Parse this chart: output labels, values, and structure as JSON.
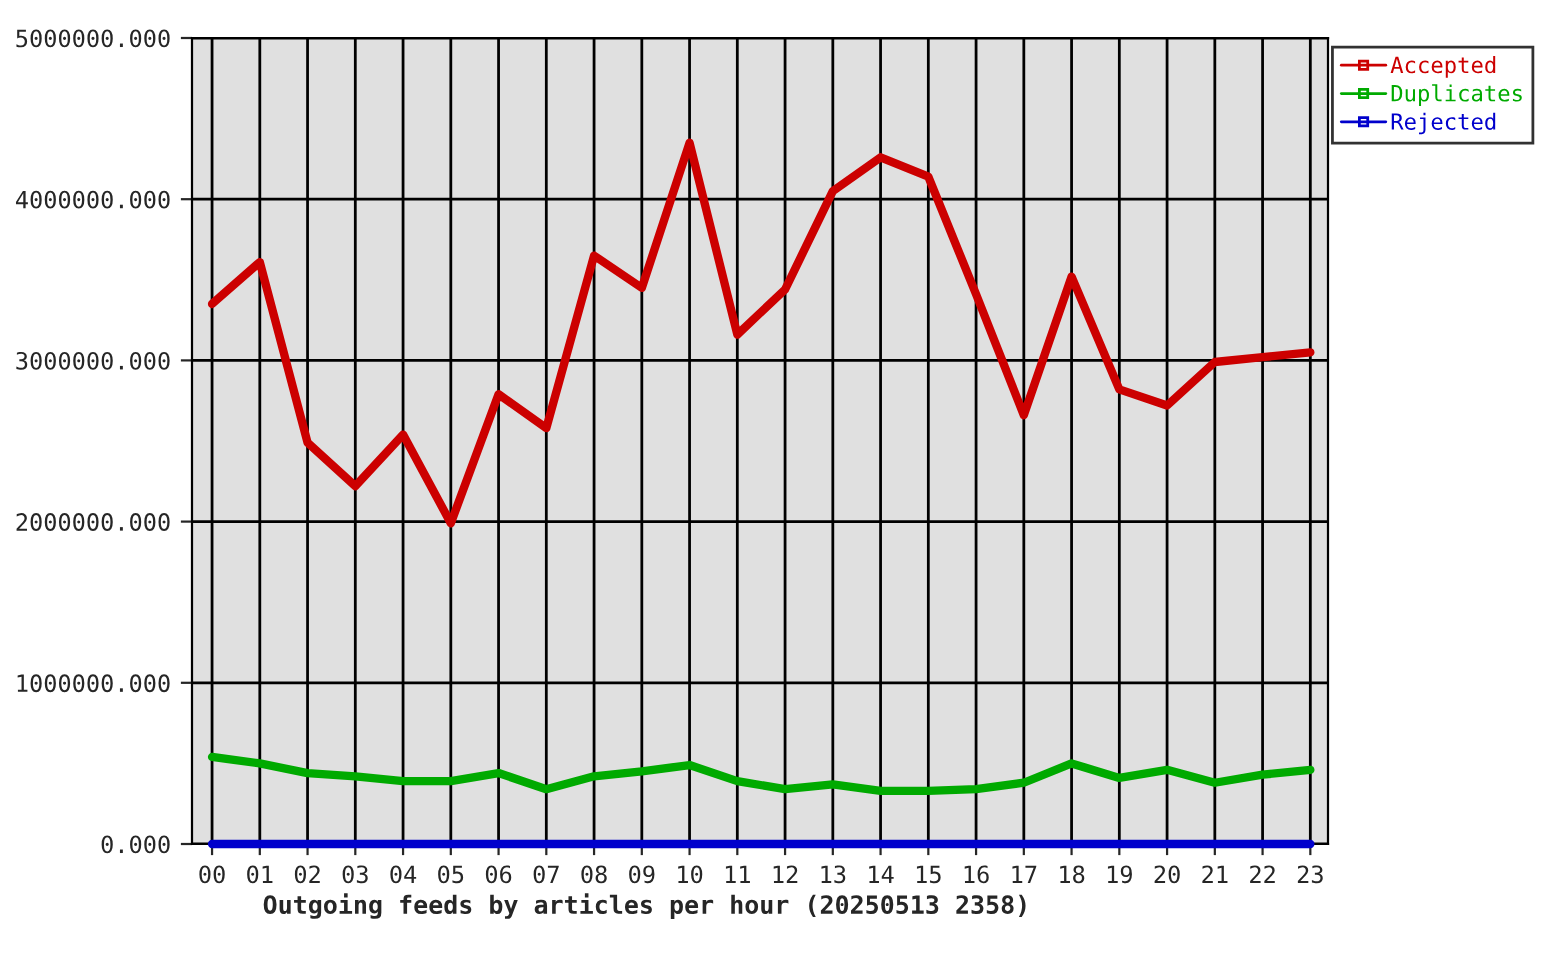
{
  "chart_data": {
    "type": "line",
    "xlabel": "Outgoing feeds by articles per hour (20250513 2358)",
    "categories": [
      "00",
      "01",
      "02",
      "03",
      "04",
      "05",
      "06",
      "07",
      "08",
      "09",
      "10",
      "11",
      "12",
      "13",
      "14",
      "15",
      "16",
      "17",
      "18",
      "19",
      "20",
      "21",
      "22",
      "23"
    ],
    "series": [
      {
        "name": "Accepted",
        "color": "#cc0000",
        "values": [
          3350000,
          3610000,
          2490000,
          2220000,
          2540000,
          1990000,
          2790000,
          2580000,
          3650000,
          3450000,
          4350000,
          3160000,
          3440000,
          4050000,
          4260000,
          4140000,
          3410000,
          2660000,
          3520000,
          2820000,
          2720000,
          2990000,
          3020000,
          3050000
        ]
      },
      {
        "name": "Duplicates",
        "color": "#00aa00",
        "values": [
          540000,
          500000,
          440000,
          420000,
          390000,
          390000,
          440000,
          340000,
          420000,
          450000,
          490000,
          390000,
          340000,
          370000,
          330000,
          330000,
          340000,
          380000,
          500000,
          410000,
          460000,
          380000,
          430000,
          460000
        ]
      },
      {
        "name": "Rejected",
        "color": "#0000cc",
        "values": [
          0,
          0,
          0,
          0,
          0,
          0,
          0,
          0,
          0,
          0,
          0,
          0,
          0,
          0,
          0,
          0,
          0,
          0,
          0,
          0,
          0,
          0,
          0,
          0
        ]
      }
    ],
    "ylim": [
      0,
      5000000
    ],
    "yticks": [
      {
        "value": 0,
        "label": "0.000"
      },
      {
        "value": 1000000,
        "label": "1000000.000"
      },
      {
        "value": 2000000,
        "label": "2000000.000"
      },
      {
        "value": 3000000,
        "label": "3000000.000"
      },
      {
        "value": 4000000,
        "label": "4000000.000"
      },
      {
        "value": 5000000,
        "label": "5000000.000"
      }
    ],
    "grid": true,
    "legend": "top right",
    "marker": "none",
    "line_style": "solid"
  }
}
